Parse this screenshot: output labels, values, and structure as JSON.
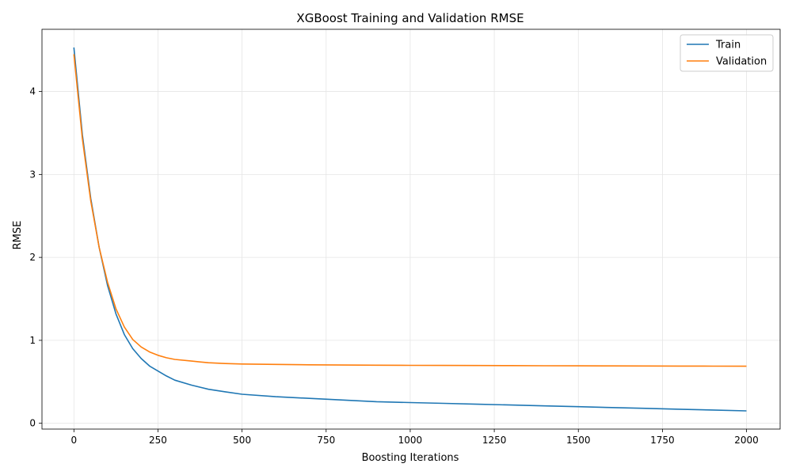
{
  "chart_data": {
    "type": "line",
    "title": "XGBoost Training and Validation RMSE",
    "xlabel": "Boosting Iterations",
    "ylabel": "RMSE",
    "xlim": [
      -95,
      2100
    ],
    "ylim": [
      -0.07,
      4.75
    ],
    "xticks": [
      0,
      250,
      500,
      750,
      1000,
      1250,
      1500,
      1750,
      2000
    ],
    "xtick_labels": [
      "0",
      "250",
      "500",
      "750",
      "1000",
      "1250",
      "1500",
      "1750",
      "2000"
    ],
    "yticks": [
      0,
      1,
      2,
      3,
      4
    ],
    "ytick_labels": [
      "0",
      "1",
      "2",
      "3",
      "4"
    ],
    "grid": true,
    "legend_position": "top-right",
    "series": [
      {
        "name": "Train",
        "color": "#1f77b4",
        "x": [
          0,
          25,
          50,
          75,
          100,
          125,
          150,
          175,
          200,
          225,
          250,
          275,
          300,
          350,
          400,
          450,
          500,
          600,
          700,
          800,
          900,
          1000,
          1100,
          1200,
          1300,
          1400,
          1500,
          1600,
          1700,
          1800,
          1900,
          2000
        ],
        "y": [
          4.53,
          3.48,
          2.71,
          2.12,
          1.66,
          1.32,
          1.07,
          0.9,
          0.78,
          0.69,
          0.63,
          0.57,
          0.52,
          0.46,
          0.41,
          0.38,
          0.35,
          0.32,
          0.3,
          0.28,
          0.26,
          0.25,
          0.24,
          0.23,
          0.22,
          0.21,
          0.2,
          0.19,
          0.18,
          0.17,
          0.16,
          0.15
        ]
      },
      {
        "name": "Validation",
        "color": "#ff7f0e",
        "x": [
          0,
          25,
          50,
          75,
          100,
          125,
          150,
          175,
          200,
          225,
          250,
          275,
          300,
          350,
          400,
          450,
          500,
          600,
          700,
          800,
          900,
          1000,
          1100,
          1200,
          1300,
          1400,
          1500,
          1600,
          1700,
          1800,
          1900,
          2000
        ],
        "y": [
          4.45,
          3.43,
          2.68,
          2.12,
          1.7,
          1.38,
          1.16,
          1.01,
          0.92,
          0.86,
          0.82,
          0.79,
          0.77,
          0.75,
          0.73,
          0.72,
          0.715,
          0.71,
          0.705,
          0.702,
          0.7,
          0.698,
          0.697,
          0.696,
          0.695,
          0.694,
          0.693,
          0.692,
          0.691,
          0.69,
          0.689,
          0.688
        ]
      }
    ]
  }
}
